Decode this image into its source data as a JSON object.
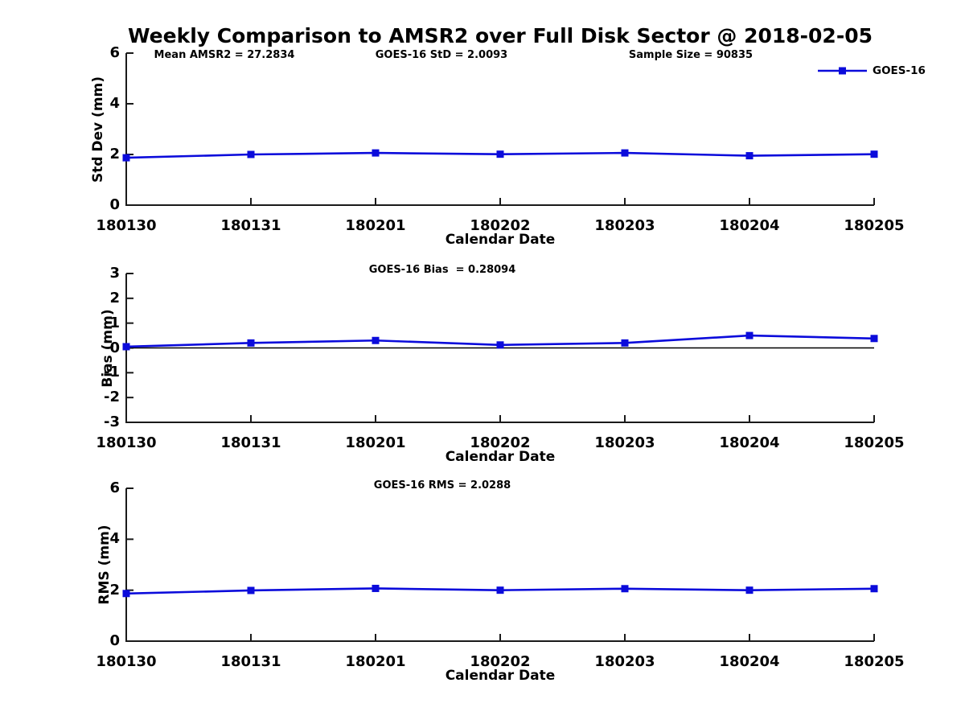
{
  "title": "Weekly Comparison to AMSR2 over Full Disk Sector @ 2018-02-05",
  "colors": {
    "series": "#0b0bdb",
    "axis": "#1a1a1a",
    "zero_line": "#000000",
    "background": "#ffffff",
    "text": "#000000"
  },
  "chart_data": [
    {
      "type": "line",
      "name": "std-dev-chart",
      "categories": [
        "180130",
        "180131",
        "180201",
        "180202",
        "180203",
        "180204",
        "180205"
      ],
      "series": [
        {
          "name": "GOES-16",
          "color": "#0b0bdb",
          "marker": "square",
          "values": [
            1.87,
            2.0,
            2.06,
            2.01,
            2.06,
            1.95,
            2.01
          ]
        }
      ],
      "xlabel": "Calendar Date",
      "ylabel": "Std Dev (mm)",
      "ylim": [
        0,
        6
      ],
      "yticks": [
        "0",
        "2",
        "4",
        "6"
      ],
      "ytick_values": [
        0,
        2,
        4,
        6
      ],
      "grid": false,
      "zero_line": false,
      "legend": {
        "show": true,
        "position": "top-right",
        "entries": [
          "GOES-16"
        ]
      },
      "annotations": [
        "Mean AMSR2 = 27.2834",
        "GOES-16 StD = 2.0093",
        "Sample Size = 90835"
      ]
    },
    {
      "type": "line",
      "name": "bias-chart",
      "categories": [
        "180130",
        "180131",
        "180201",
        "180202",
        "180203",
        "180204",
        "180205"
      ],
      "series": [
        {
          "name": "GOES-16",
          "color": "#0b0bdb",
          "marker": "square",
          "values": [
            0.05,
            0.2,
            0.3,
            0.12,
            0.2,
            0.5,
            0.38
          ]
        }
      ],
      "xlabel": "Calendar Date",
      "ylabel": "Bias (mm)",
      "ylim": [
        -3,
        3
      ],
      "yticks": [
        "-3",
        "-2",
        "-1",
        "0",
        "1",
        "2",
        "3"
      ],
      "ytick_values": [
        -3,
        -2,
        -1,
        0,
        1,
        2,
        3
      ],
      "grid": false,
      "zero_line": true,
      "legend": {
        "show": false
      },
      "annotations": [
        "GOES-16 Bias  = 0.28094"
      ]
    },
    {
      "type": "line",
      "name": "rms-chart",
      "categories": [
        "180130",
        "180131",
        "180201",
        "180202",
        "180203",
        "180204",
        "180205"
      ],
      "series": [
        {
          "name": "GOES-16",
          "color": "#0b0bdb",
          "marker": "square",
          "values": [
            1.87,
            1.99,
            2.07,
            2.0,
            2.06,
            2.0,
            2.06
          ]
        }
      ],
      "xlabel": "Calendar Date",
      "ylabel": "RMS (mm)",
      "ylim": [
        0,
        6
      ],
      "yticks": [
        "0",
        "2",
        "4",
        "6"
      ],
      "ytick_values": [
        0,
        2,
        4,
        6
      ],
      "grid": false,
      "zero_line": false,
      "legend": {
        "show": false
      },
      "annotations": [
        "GOES-16 RMS = 2.0288"
      ]
    }
  ]
}
